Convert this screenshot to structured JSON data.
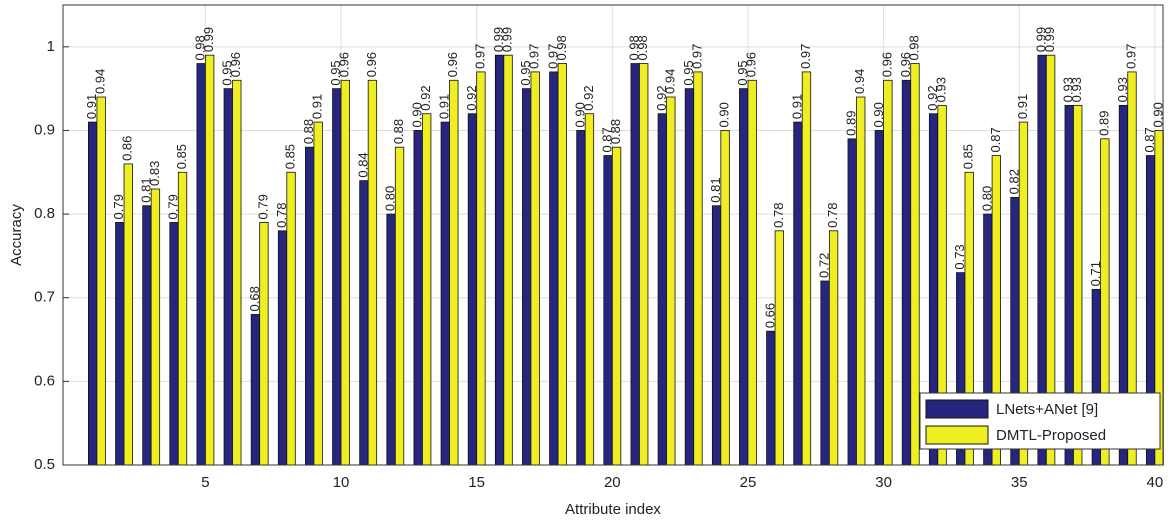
{
  "chart_data": {
    "type": "bar",
    "x_label": "Attribute index",
    "y_label": "Accuracy",
    "x": [
      1,
      2,
      3,
      4,
      5,
      6,
      7,
      8,
      9,
      10,
      11,
      12,
      13,
      14,
      15,
      16,
      17,
      18,
      19,
      20,
      21,
      22,
      23,
      24,
      25,
      26,
      27,
      28,
      29,
      30,
      31,
      32,
      33,
      34,
      35,
      36,
      37,
      38,
      39,
      40
    ],
    "series": [
      {
        "name": "LNets+ANet [9]",
        "color": "#26267f",
        "values": [
          0.91,
          0.79,
          0.81,
          0.79,
          0.98,
          0.95,
          0.68,
          0.78,
          0.88,
          0.95,
          0.84,
          0.8,
          0.9,
          0.91,
          0.92,
          0.99,
          0.95,
          0.97,
          0.9,
          0.87,
          0.98,
          0.92,
          0.95,
          0.81,
          0.95,
          0.66,
          0.91,
          0.72,
          0.89,
          0.9,
          0.96,
          0.92,
          0.73,
          0.8,
          0.82,
          0.99,
          0.93,
          0.71,
          0.93,
          0.87
        ],
        "value_labels": [
          "0.91",
          "0.79",
          "0.81",
          "0.79",
          "0.98",
          "0.95",
          "0.68",
          "0.78",
          "0.88",
          "0.95",
          "0.84",
          "0.80",
          "0.90",
          "0.91",
          "0.92",
          "0.99",
          "0.95",
          "0.97",
          "0.90",
          "0.87",
          "0.98",
          "0.92",
          "0.95",
          "0.81",
          "0.95",
          "0.66",
          "0.91",
          "0.72",
          "0.89",
          "0.90",
          "0.96",
          "0.92",
          "0.73",
          "0.80",
          "0.82",
          "0.99",
          "0.93",
          "0.71",
          "0.93",
          "0.87"
        ]
      },
      {
        "name": "DMTL-Proposed",
        "color": "#eeee22",
        "values": [
          0.94,
          0.86,
          0.83,
          0.85,
          0.99,
          0.96,
          0.79,
          0.85,
          0.91,
          0.96,
          0.96,
          0.88,
          0.92,
          0.96,
          0.97,
          0.99,
          0.97,
          0.98,
          0.92,
          0.88,
          0.98,
          0.94,
          0.97,
          0.9,
          0.96,
          0.78,
          0.97,
          0.78,
          0.94,
          0.96,
          0.98,
          0.93,
          0.85,
          0.87,
          0.91,
          0.99,
          0.93,
          0.89,
          0.97,
          0.9
        ],
        "value_labels": [
          "0.94",
          "0.86",
          "0.83",
          "0.85",
          "0.99",
          "0.96",
          "0.79",
          "0.85",
          "0.91",
          "0.96",
          "0.96",
          "0.88",
          "0.92",
          "0.96",
          "0.97",
          "0.99",
          "0.97",
          "0.98",
          "0.92",
          "0.88",
          "0.98",
          "0.94",
          "0.97",
          "0.90",
          "0.96",
          "0.78",
          "0.97",
          "0.78",
          "0.94",
          "0.96",
          "0.98",
          "0.93",
          "0.85",
          "0.87",
          "0.91",
          "0.99",
          "0.93",
          "0.89",
          "0.97",
          "0.90"
        ]
      }
    ],
    "xlim": [
      -0.25,
      40.3
    ],
    "xticks": [
      5,
      10,
      15,
      20,
      25,
      30,
      35,
      40
    ],
    "ylim": [
      0.5,
      1.05
    ],
    "yticks": [
      0.5,
      0.6,
      0.7,
      0.8,
      0.9,
      1
    ],
    "grid": true,
    "legend": "lower right"
  }
}
